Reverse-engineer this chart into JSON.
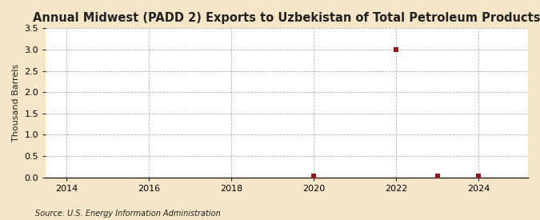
{
  "title": "Annual Midwest (PADD 2) Exports to Uzbekistan of Total Petroleum Products",
  "ylabel": "Thousand Barrels",
  "source": "Source: U.S. Energy Information Administration",
  "fig_background_color": "#f5e6c8",
  "plot_background_color": "#ffffff",
  "data_years": [
    2020,
    2022,
    2023,
    2024
  ],
  "data_values": [
    0.03,
    3.0,
    0.03,
    0.03
  ],
  "xlim": [
    2013.5,
    2025.2
  ],
  "ylim": [
    0,
    3.5
  ],
  "xticks": [
    2014,
    2016,
    2018,
    2020,
    2022,
    2024
  ],
  "yticks": [
    0.0,
    0.5,
    1.0,
    1.5,
    2.0,
    2.5,
    3.0,
    3.5
  ],
  "marker_color": "#8b1a1a",
  "marker_size": 16,
  "grid_color": "#aaaaaa",
  "axis_color": "#222222",
  "title_fontsize": 10.5,
  "label_fontsize": 8,
  "tick_fontsize": 8,
  "source_fontsize": 7
}
